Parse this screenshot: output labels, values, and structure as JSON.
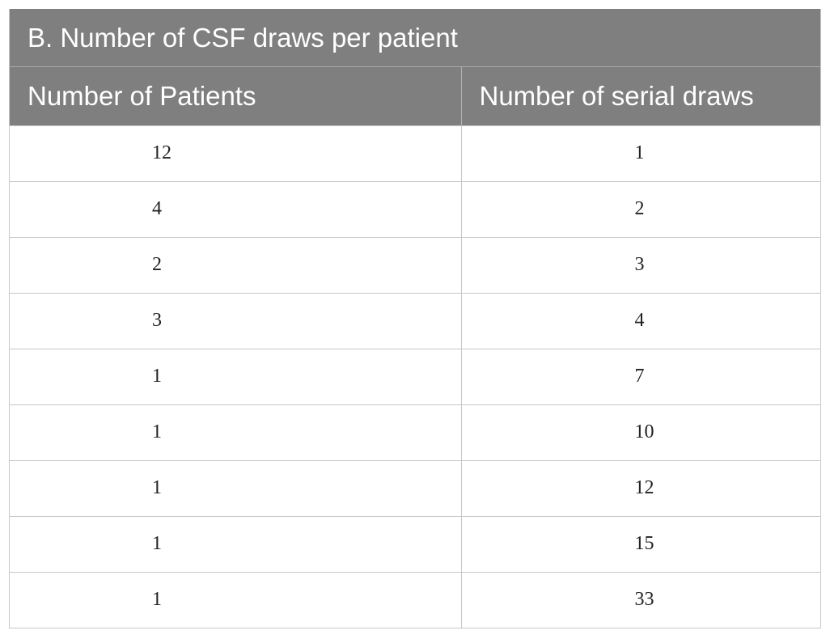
{
  "table": {
    "caption": "B. Number of CSF draws per patient",
    "headers": [
      "Number of Patients",
      "Number of serial draws"
    ],
    "rows": [
      [
        "12",
        "1"
      ],
      [
        "4",
        "2"
      ],
      [
        "2",
        "3"
      ],
      [
        "3",
        "4"
      ],
      [
        "1",
        "7"
      ],
      [
        "1",
        "10"
      ],
      [
        "1",
        "12"
      ],
      [
        "1",
        "15"
      ],
      [
        "1",
        "33"
      ]
    ]
  }
}
